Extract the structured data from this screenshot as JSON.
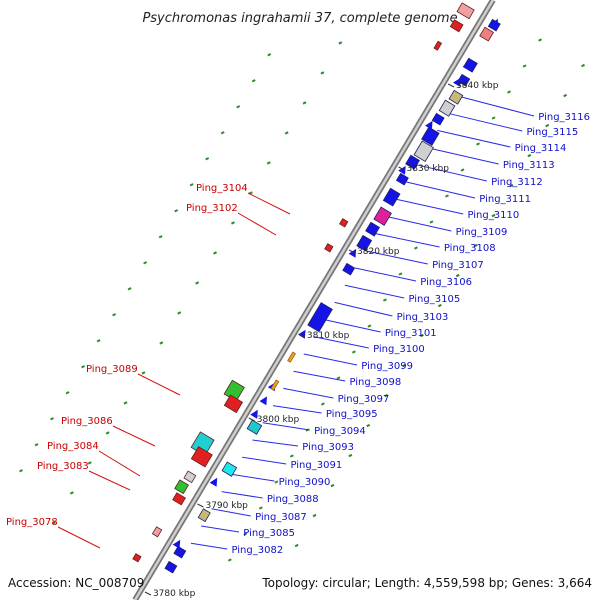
{
  "title": "Psychromonas ingrahamii 37, complete genome",
  "footer": {
    "accession": "Accession: NC_008709",
    "topology": "Topology: circular; Length: 4,559,598 bp; Genes: 3,664"
  },
  "colors": {
    "backbone": "#a8a8a8",
    "forward_label": "#1010c8",
    "reverse_label": "#c80000",
    "leader_forward": "#2a2ae8",
    "leader_reverse": "#d01010",
    "tick_mark": "#2e8b2e"
  },
  "ticks": [
    "3780 kbp",
    "3790 kbp",
    "3800 kbp",
    "3810 kbp",
    "3820 kbp",
    "3830 kbp",
    "3840 kbp"
  ],
  "forward_labels": [
    "Ping_3116",
    "Ping_3115",
    "Ping_3114",
    "Ping_3113",
    "Ping_3112",
    "Ping_3111",
    "Ping_3110",
    "Ping_3109",
    "Ping_3108",
    "Ping_3107",
    "Ping_3106",
    "Ping_3105",
    "Ping_3103",
    "Ping_3101",
    "Ping_3100",
    "Ping_3099",
    "Ping_3098",
    "Ping_3097",
    "Ping_3095",
    "Ping_3094",
    "Ping_3093",
    "Ping_3091",
    "Ping_3090",
    "Ping_3088",
    "Ping_3087",
    "Ping_3085",
    "Ping_3082"
  ],
  "reverse_labels": [
    "Ping_3104",
    "Ping_3102",
    "Ping_3089",
    "Ping_3086",
    "Ping_3084",
    "Ping_3083",
    "Ping_3078"
  ]
}
